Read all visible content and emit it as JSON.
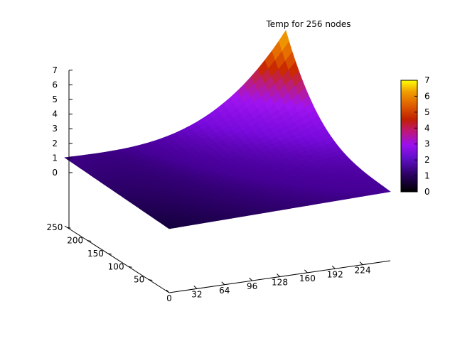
{
  "chart_data": {
    "type": "surface3d",
    "title": "Temp for 256 nodes",
    "x_ticks": [
      0,
      32,
      64,
      96,
      128,
      160,
      192,
      224
    ],
    "y_ticks": [
      50,
      100,
      150,
      200,
      250
    ],
    "z_ticks": [
      0,
      1,
      2,
      3,
      4,
      5,
      6,
      7
    ],
    "xlim": [
      0,
      256
    ],
    "ylim": [
      0,
      256
    ],
    "zlim": [
      0,
      7
    ],
    "corner_values": {
      "x0_y0": 0.0,
      "x256_y0": 0.35,
      "x0_y256": 0.3,
      "x256_y256": 6.8
    },
    "colorbox": {
      "ticks": [
        0,
        1,
        2,
        3,
        4,
        5,
        6,
        7
      ],
      "range": [
        0,
        7
      ],
      "palette": "black-blue-purple-red-orange-yellow"
    },
    "grid": false
  }
}
